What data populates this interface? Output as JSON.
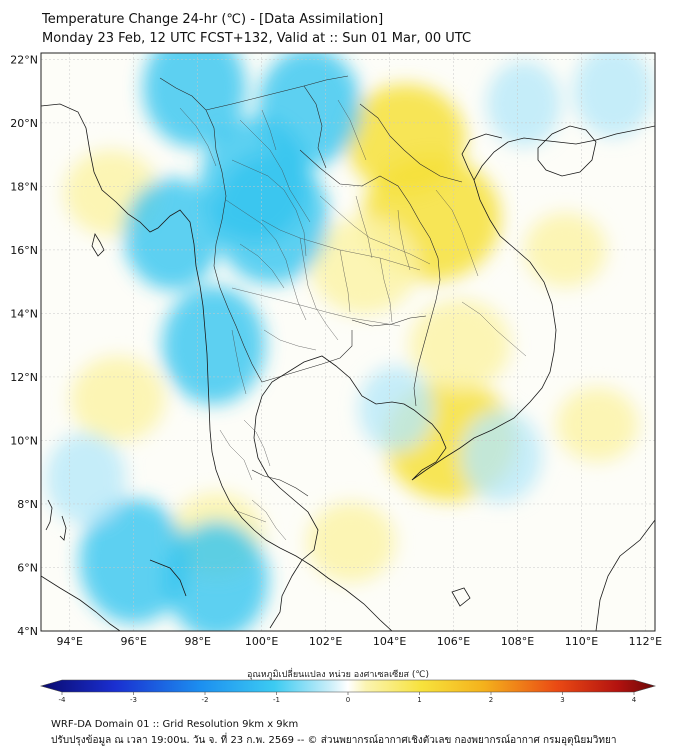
{
  "header": {
    "title": "Temperature Change 24-hr (℃) - [Data Assimilation]",
    "subtitle": "Monday 23 Feb, 12 UTC FCST+132, Valid at :: Sun 01 Mar, 00 UTC"
  },
  "axes": {
    "lat_labels": [
      "22°N",
      "20°N",
      "18°N",
      "16°N",
      "14°N",
      "12°N",
      "10°N",
      "8°N",
      "6°N",
      "4°N"
    ],
    "lon_labels": [
      "94°E",
      "96°E",
      "98°E",
      "100°E",
      "102°E",
      "104°E",
      "106°E",
      "108°E",
      "110°E",
      "112°E"
    ],
    "lat_range": [
      4,
      22.2
    ],
    "lon_range": [
      93.1,
      112.3
    ]
  },
  "colorbar": {
    "label": "อุณหภูมิเปลี่ยนแปลง หน่วย องศาเซลเซียส (℃)",
    "ticks": [
      "-4",
      "-3",
      "-2",
      "-1",
      "0",
      "1",
      "2",
      "3",
      "4"
    ],
    "min": -4,
    "max": 4
  },
  "field": {
    "warm_areas": [
      {
        "lon": 105.3,
        "lat": 17.0,
        "value": 1.3
      },
      {
        "lon": 104.5,
        "lat": 19.5,
        "value": 1.0
      },
      {
        "lon": 103.2,
        "lat": 15.5,
        "value": 0.8
      },
      {
        "lon": 105.9,
        "lat": 10.0,
        "value": 1.2
      },
      {
        "lon": 95.3,
        "lat": 17.8,
        "value": 0.6
      },
      {
        "lon": 98.6,
        "lat": 7.0,
        "value": 0.6
      },
      {
        "lon": 95.5,
        "lat": 11.3,
        "value": 0.6
      },
      {
        "lon": 102.8,
        "lat": 6.8,
        "value": 0.5
      },
      {
        "lon": 106.2,
        "lat": 13.0,
        "value": 0.7
      },
      {
        "lon": 110.5,
        "lat": 10.5,
        "value": 0.4
      },
      {
        "lon": 109.5,
        "lat": 16.0,
        "value": 0.4
      }
    ],
    "cool_areas": [
      {
        "lon": 97.9,
        "lat": 21.1,
        "value": -0.9
      },
      {
        "lon": 99.8,
        "lat": 18.2,
        "value": -1.0
      },
      {
        "lon": 100.3,
        "lat": 17.0,
        "value": -1.1
      },
      {
        "lon": 101.5,
        "lat": 20.5,
        "value": -0.9
      },
      {
        "lon": 97.2,
        "lat": 16.5,
        "value": -0.8
      },
      {
        "lon": 98.5,
        "lat": 13.0,
        "value": -0.9
      },
      {
        "lon": 96.0,
        "lat": 6.2,
        "value": -1.0
      },
      {
        "lon": 98.6,
        "lat": 5.6,
        "value": -0.9
      },
      {
        "lon": 94.5,
        "lat": 8.8,
        "value": -0.5
      },
      {
        "lon": 111.0,
        "lat": 21.0,
        "value": -0.5
      },
      {
        "lon": 108.2,
        "lat": 20.6,
        "value": -0.4
      },
      {
        "lon": 107.5,
        "lat": 9.5,
        "value": -0.5
      },
      {
        "lon": 104.2,
        "lat": 11.0,
        "value": -0.4
      }
    ]
  },
  "footer": {
    "line1": "WRF-DA Domain 01 :: Grid Resolution 9km x 9km",
    "line2": "ปรับปรุงข้อมูล ณ เวลา 19:00น. วัน จ. ที่ 23 ก.พ. 2569 -- © ส่วนพยากรณ์อากาศเชิงตัวเลข กองพยากรณ์อากาศ กรมอุตุนิยมวิทยา"
  },
  "colors": {
    "warm": "#f6e03a",
    "warm_light": "#fbf3a8",
    "cool": "#34c4ef",
    "cool_light": "#b6e9f9",
    "coastline": "#1a1a1a",
    "grid": "#c8c8c8"
  }
}
